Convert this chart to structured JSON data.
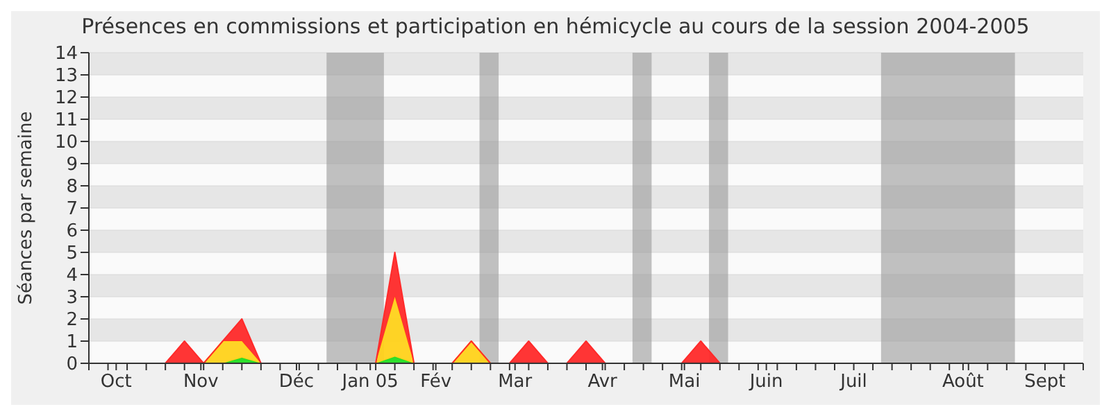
{
  "chart_data": {
    "type": "area",
    "title": "Présences en commissions et participation en hémicycle au cours de la session 2004-2005",
    "ylabel": "Séances par semaine",
    "stacked": true,
    "grid": "y",
    "legend": false,
    "marker": "none",
    "x": [
      "2004-09-27",
      "2004-10-04",
      "2004-10-11",
      "2004-10-18",
      "2004-10-25",
      "2004-11-01",
      "2004-11-08",
      "2004-11-15",
      "2004-11-22",
      "2004-11-29",
      "2004-12-06",
      "2004-12-13",
      "2004-12-20",
      "2004-12-27",
      "2005-01-03",
      "2005-01-10",
      "2005-01-17",
      "2005-01-24",
      "2005-01-31",
      "2005-02-07",
      "2005-02-14",
      "2005-02-21",
      "2005-02-28",
      "2005-03-07",
      "2005-03-14",
      "2005-03-21",
      "2005-03-28",
      "2005-04-04",
      "2005-04-11",
      "2005-04-18",
      "2005-04-25",
      "2005-05-02",
      "2005-05-09",
      "2005-05-16",
      "2005-05-23",
      "2005-05-30",
      "2005-06-06",
      "2005-06-13",
      "2005-06-20",
      "2005-06-27",
      "2005-07-04",
      "2005-07-11",
      "2005-07-18",
      "2005-07-25",
      "2005-08-01",
      "2005-08-08",
      "2005-08-15",
      "2005-08-22",
      "2005-08-29",
      "2005-09-05",
      "2005-09-12",
      "2005-09-19",
      "2005-09-26"
    ],
    "series": [
      {
        "color": "#22dd22",
        "values": [
          0,
          0,
          0,
          0,
          0,
          0,
          0,
          0,
          0.25,
          0,
          0,
          0,
          0,
          0,
          0,
          0,
          0.3,
          0,
          0,
          0,
          0,
          0,
          0,
          0,
          0,
          0,
          0,
          0,
          0,
          0,
          0,
          0,
          0,
          0,
          0,
          0,
          0,
          0,
          0,
          0,
          0,
          0,
          0,
          0,
          0,
          0,
          0,
          0,
          0,
          0,
          0,
          0,
          0
        ]
      },
      {
        "color": "#ffd21a",
        "values": [
          0,
          0,
          0,
          0,
          0,
          0,
          0,
          1,
          0.75,
          0,
          0,
          0,
          0,
          0,
          0,
          0,
          2.7,
          0,
          0,
          0,
          1,
          0,
          0,
          0,
          0,
          0,
          0,
          0,
          0,
          0,
          0,
          0,
          0,
          0,
          0,
          0,
          0,
          0,
          0,
          0,
          0,
          0,
          0,
          0,
          0,
          0,
          0,
          0,
          0,
          0,
          0,
          0,
          0
        ]
      },
      {
        "color": "#ff2a2a",
        "values": [
          0,
          0,
          0,
          0,
          0,
          1,
          0,
          0,
          1,
          0,
          0,
          0,
          0,
          0,
          0,
          0,
          2,
          0,
          0,
          0,
          0,
          0,
          0,
          1,
          0,
          0,
          1,
          0,
          0,
          0,
          0,
          0,
          1,
          0,
          0,
          0,
          0,
          0,
          0,
          0,
          0,
          0,
          0,
          0,
          0,
          0,
          0,
          0,
          0,
          0,
          0,
          0,
          0
        ]
      }
    ],
    "xlim": [
      "2004-09-27",
      "2005-09-26"
    ],
    "xticks": [
      {
        "value": "2004-10-07",
        "label": "Oct"
      },
      {
        "value": "2004-11-07",
        "label": "Nov"
      },
      {
        "value": "2004-12-12",
        "label": "Déc"
      },
      {
        "value": "2005-01-08",
        "label": "Jan 05"
      },
      {
        "value": "2005-02-01",
        "label": "Fév"
      },
      {
        "value": "2005-03-02",
        "label": "Mar"
      },
      {
        "value": "2005-04-03",
        "label": "Avr"
      },
      {
        "value": "2005-05-03",
        "label": "Mai"
      },
      {
        "value": "2005-06-02",
        "label": "Juin"
      },
      {
        "value": "2005-07-04",
        "label": "Juil"
      },
      {
        "value": "2005-08-13",
        "label": "Août"
      },
      {
        "value": "2005-09-12",
        "label": "Sept"
      },
      {
        "value": "2004-09-27",
        "label": null
      },
      {
        "value": "2004-10-04",
        "label": null
      },
      {
        "value": "2004-10-11",
        "label": null
      },
      {
        "value": "2004-10-18",
        "label": null
      },
      {
        "value": "2004-10-25",
        "label": null
      },
      {
        "value": "2004-11-01",
        "label": null
      },
      {
        "value": "2004-11-08",
        "label": null
      },
      {
        "value": "2004-11-15",
        "label": null
      },
      {
        "value": "2004-11-22",
        "label": null
      },
      {
        "value": "2004-11-29",
        "label": null
      },
      {
        "value": "2004-12-06",
        "label": null
      },
      {
        "value": "2004-12-13",
        "label": null
      },
      {
        "value": "2004-12-20",
        "label": null
      },
      {
        "value": "2004-12-27",
        "label": null
      },
      {
        "value": "2005-01-03",
        "label": null
      },
      {
        "value": "2005-01-10",
        "label": null
      },
      {
        "value": "2005-01-17",
        "label": null
      },
      {
        "value": "2005-01-24",
        "label": null
      },
      {
        "value": "2005-01-31",
        "label": null
      },
      {
        "value": "2005-02-07",
        "label": null
      },
      {
        "value": "2005-02-14",
        "label": null
      },
      {
        "value": "2005-02-21",
        "label": null
      },
      {
        "value": "2005-02-28",
        "label": null
      },
      {
        "value": "2005-03-07",
        "label": null
      },
      {
        "value": "2005-03-14",
        "label": null
      },
      {
        "value": "2005-03-21",
        "label": null
      },
      {
        "value": "2005-03-28",
        "label": null
      },
      {
        "value": "2005-04-04",
        "label": null
      },
      {
        "value": "2005-04-11",
        "label": null
      },
      {
        "value": "2005-04-18",
        "label": null
      },
      {
        "value": "2005-04-25",
        "label": null
      },
      {
        "value": "2005-05-02",
        "label": null
      },
      {
        "value": "2005-05-09",
        "label": null
      },
      {
        "value": "2005-05-16",
        "label": null
      },
      {
        "value": "2005-05-23",
        "label": null
      },
      {
        "value": "2005-05-30",
        "label": null
      },
      {
        "value": "2005-06-06",
        "label": null
      },
      {
        "value": "2005-06-13",
        "label": null
      },
      {
        "value": "2005-06-20",
        "label": null
      },
      {
        "value": "2005-06-27",
        "label": null
      },
      {
        "value": "2005-07-11",
        "label": null
      },
      {
        "value": "2005-07-18",
        "label": null
      },
      {
        "value": "2005-07-25",
        "label": null
      },
      {
        "value": "2005-08-01",
        "label": null
      },
      {
        "value": "2005-08-08",
        "label": null
      },
      {
        "value": "2005-08-15",
        "label": null
      },
      {
        "value": "2005-08-22",
        "label": null
      },
      {
        "value": "2005-08-29",
        "label": null
      },
      {
        "value": "2005-09-05",
        "label": null
      },
      {
        "value": "2005-09-19",
        "label": null
      },
      {
        "value": "2005-09-26",
        "label": null
      }
    ],
    "ylim": [
      0,
      14
    ],
    "yticks": [
      0,
      1,
      2,
      3,
      4,
      5,
      6,
      7,
      8,
      9,
      10,
      11,
      12,
      13,
      14
    ],
    "bands": [
      {
        "axis": "x",
        "from": "2004-12-23",
        "to": "2005-01-13",
        "color": "#999999"
      },
      {
        "axis": "x",
        "from": "2005-02-17",
        "to": "2005-02-24",
        "color": "#999999"
      },
      {
        "axis": "x",
        "from": "2005-04-14",
        "to": "2005-04-21",
        "color": "#999999"
      },
      {
        "axis": "x",
        "from": "2005-05-12",
        "to": "2005-05-19",
        "color": "#999999"
      },
      {
        "axis": "x",
        "from": "2005-07-14",
        "to": "2005-09-01",
        "color": "#999999"
      }
    ]
  }
}
